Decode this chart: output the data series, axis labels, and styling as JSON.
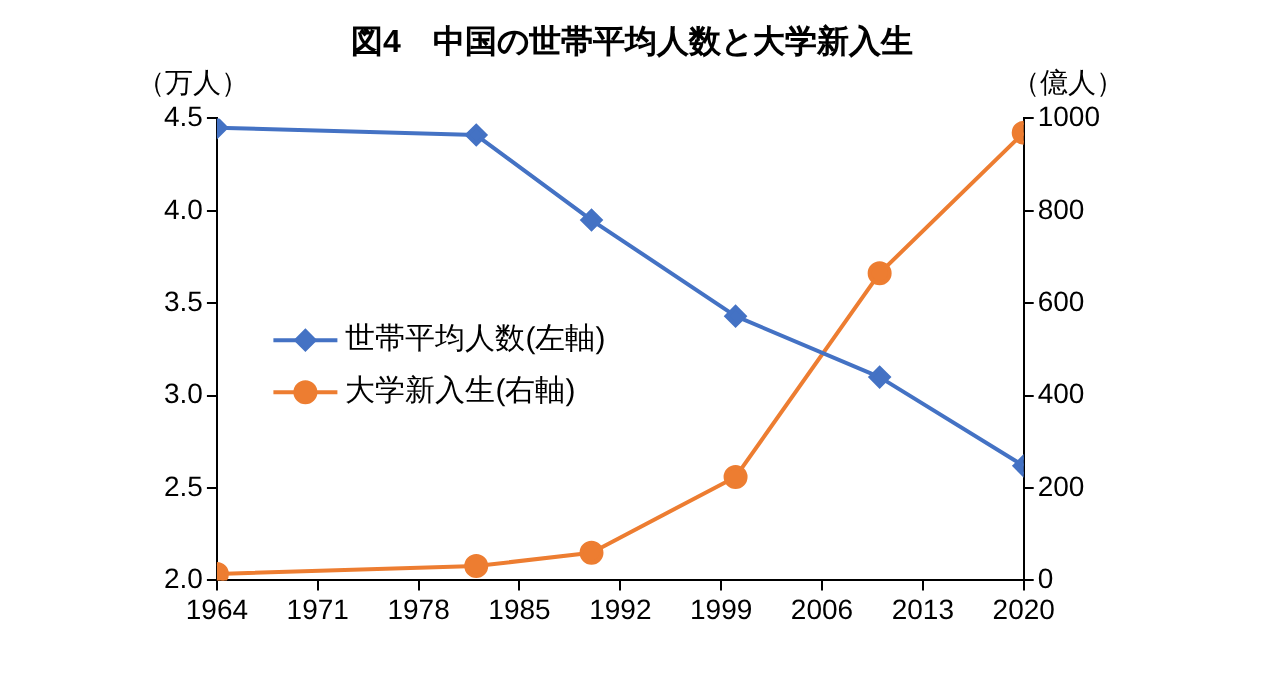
{
  "chart_data": {
    "type": "line",
    "title": "図4　中国の世帯平均人数と大学新入生",
    "ylabel": "（万人）",
    "y2label": "（億人）",
    "x": [
      1964,
      1982,
      1990,
      2000,
      2010,
      2020
    ],
    "series": [
      {
        "name": "世帯平均人数(左軸)",
        "color": "#4472c4",
        "marker": "diamond",
        "values": [
          4.45,
          4.41,
          3.95,
          3.43,
          3.1,
          2.62
        ]
      },
      {
        "name": "大学新入生(右軸)",
        "color": "#ed7d31",
        "marker": "circle",
        "axis": "y2",
        "values": [
          14,
          31,
          60,
          224,
          665,
          969
        ]
      }
    ],
    "xlim": [
      1964,
      2020
    ],
    "xticks": [
      1964,
      1971,
      1978,
      1985,
      1992,
      1999,
      2006,
      2013,
      2020
    ],
    "ylim": [
      2.0,
      4.5
    ],
    "yticks": [
      {
        "value": 2,
        "label": "2.0"
      },
      {
        "value": 2.5,
        "label": "2.5"
      },
      {
        "value": 3,
        "label": "3.0"
      },
      {
        "value": 3.5,
        "label": "3.5"
      },
      {
        "value": 4,
        "label": "4.0"
      },
      {
        "value": 4.5,
        "label": "4.5"
      }
    ],
    "y2lim": [
      0,
      1000
    ],
    "y2ticks": [
      0,
      200,
      400,
      600,
      800,
      1000
    ],
    "grid": false,
    "legend": "left",
    "line_style": "solid"
  }
}
